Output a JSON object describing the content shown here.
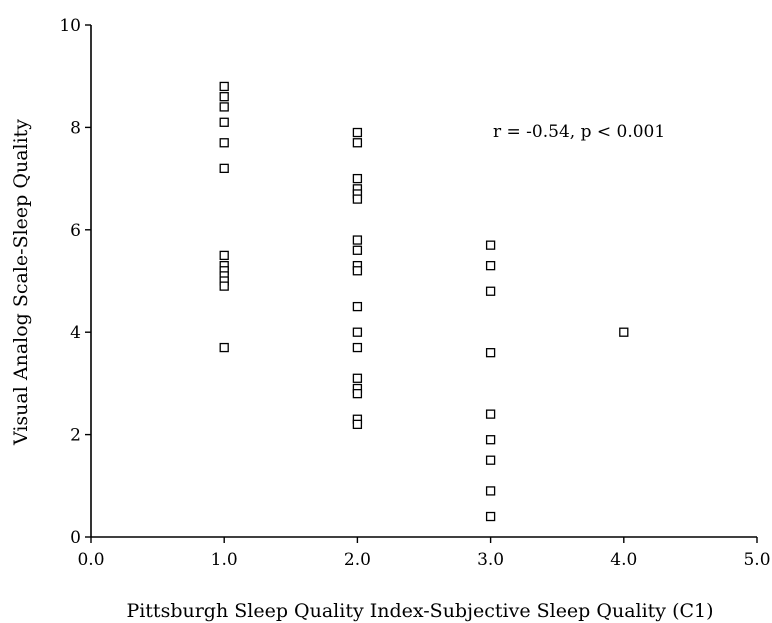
{
  "chart_data": {
    "type": "scatter",
    "xlabel": "Pittsburgh Sleep Quality Index-Subjective Sleep Quality (C1)",
    "ylabel": "Visual Analog Scale-Sleep Quality",
    "xlim": [
      0.0,
      5.0
    ],
    "ylim": [
      0,
      10
    ],
    "x_ticks": [
      "0.0",
      "1.0",
      "2.0",
      "3.0",
      "4.0",
      "5.0"
    ],
    "y_ticks": [
      "0",
      "2",
      "4",
      "6",
      "8",
      "10"
    ],
    "grid": false,
    "marker": "open-square",
    "annotation": "r = -0.54, p < 0.001",
    "points": [
      {
        "x": 1.0,
        "y": 8.8
      },
      {
        "x": 1.0,
        "y": 8.6
      },
      {
        "x": 1.0,
        "y": 8.4
      },
      {
        "x": 1.0,
        "y": 8.1
      },
      {
        "x": 1.0,
        "y": 7.7
      },
      {
        "x": 1.0,
        "y": 7.2
      },
      {
        "x": 1.0,
        "y": 5.5
      },
      {
        "x": 1.0,
        "y": 5.3
      },
      {
        "x": 1.0,
        "y": 5.2
      },
      {
        "x": 1.0,
        "y": 5.1
      },
      {
        "x": 1.0,
        "y": 5.0
      },
      {
        "x": 1.0,
        "y": 4.9
      },
      {
        "x": 1.0,
        "y": 3.7
      },
      {
        "x": 2.0,
        "y": 7.9
      },
      {
        "x": 2.0,
        "y": 7.7
      },
      {
        "x": 2.0,
        "y": 7.0
      },
      {
        "x": 2.0,
        "y": 6.8
      },
      {
        "x": 2.0,
        "y": 6.7
      },
      {
        "x": 2.0,
        "y": 6.6
      },
      {
        "x": 2.0,
        "y": 5.8
      },
      {
        "x": 2.0,
        "y": 5.6
      },
      {
        "x": 2.0,
        "y": 5.3
      },
      {
        "x": 2.0,
        "y": 5.2
      },
      {
        "x": 2.0,
        "y": 4.5
      },
      {
        "x": 2.0,
        "y": 4.0
      },
      {
        "x": 2.0,
        "y": 3.7
      },
      {
        "x": 2.0,
        "y": 3.1
      },
      {
        "x": 2.0,
        "y": 2.9
      },
      {
        "x": 2.0,
        "y": 2.8
      },
      {
        "x": 2.0,
        "y": 2.3
      },
      {
        "x": 2.0,
        "y": 2.2
      },
      {
        "x": 3.0,
        "y": 5.7
      },
      {
        "x": 3.0,
        "y": 5.3
      },
      {
        "x": 3.0,
        "y": 4.8
      },
      {
        "x": 3.0,
        "y": 3.6
      },
      {
        "x": 3.0,
        "y": 2.4
      },
      {
        "x": 3.0,
        "y": 1.9
      },
      {
        "x": 3.0,
        "y": 1.5
      },
      {
        "x": 3.0,
        "y": 0.9
      },
      {
        "x": 3.0,
        "y": 0.4
      },
      {
        "x": 4.0,
        "y": 4.0
      }
    ]
  }
}
